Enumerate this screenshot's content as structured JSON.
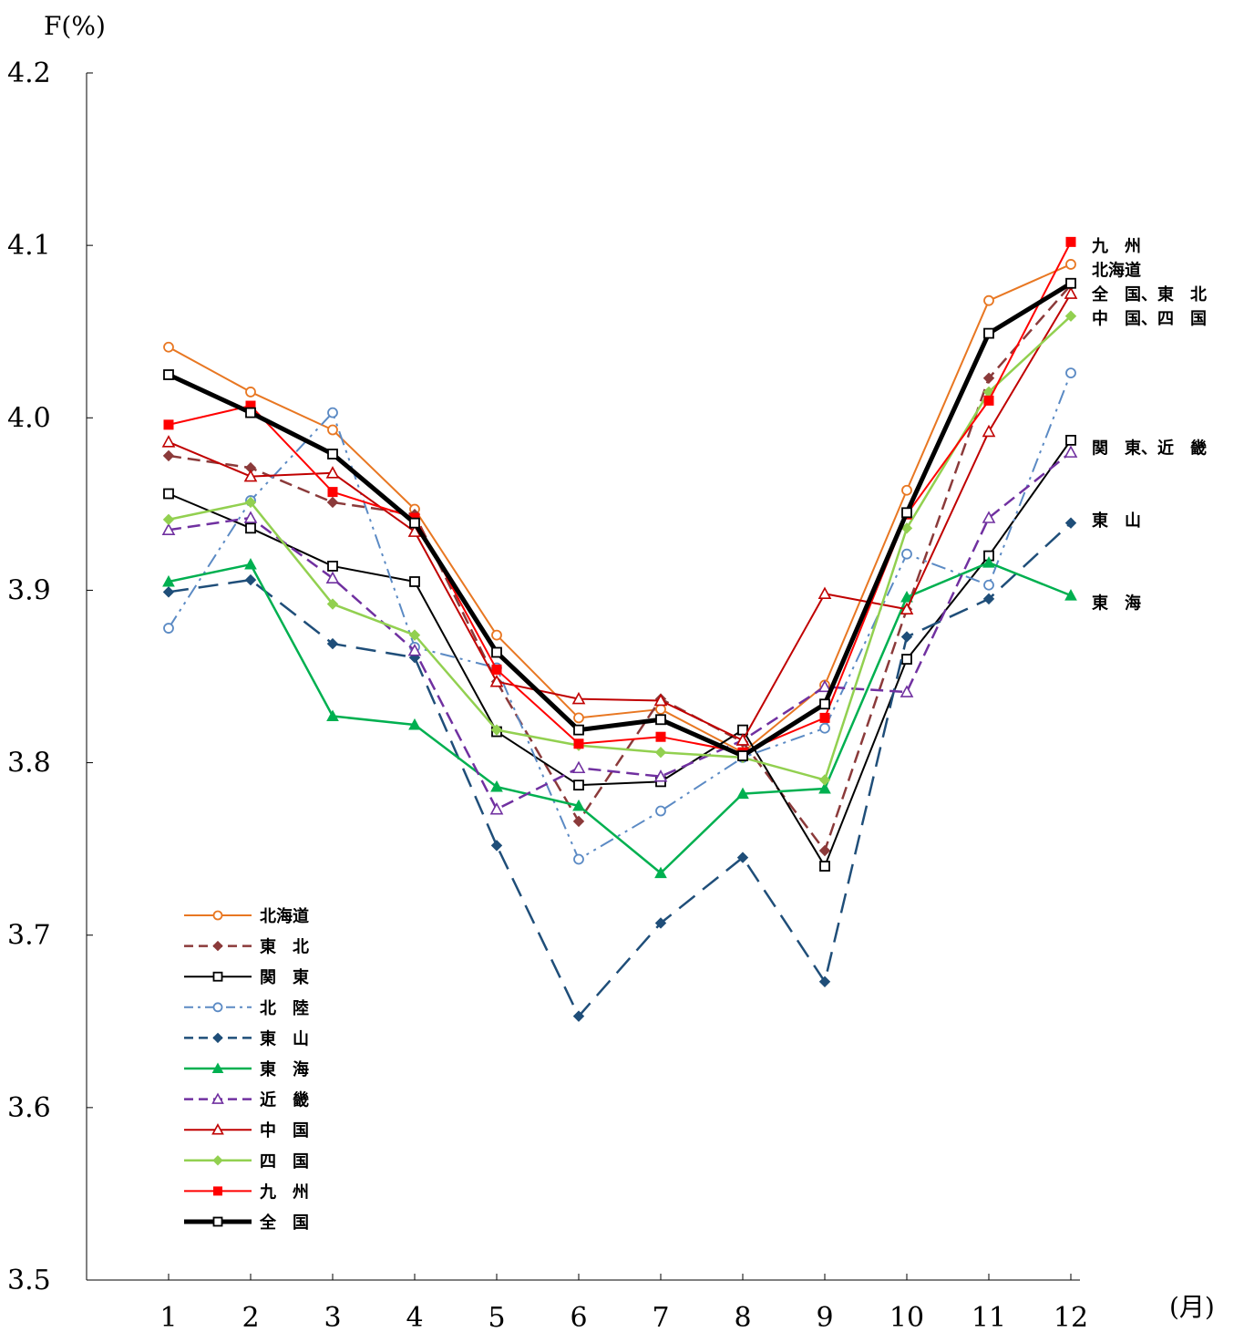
{
  "chart_data": {
    "type": "line",
    "ylabel": "F(%)",
    "xlabel": "(月)",
    "ylim": [
      3.5,
      4.2
    ],
    "y_ticks": [
      "3.5",
      "3.6",
      "3.7",
      "3.8",
      "3.9",
      "4.0",
      "4.1",
      "4.2"
    ],
    "categories": [
      "1",
      "2",
      "3",
      "4",
      "5",
      "6",
      "7",
      "8",
      "9",
      "10",
      "11",
      "12"
    ],
    "legend_position": "bottom-left",
    "series": [
      {
        "name": "北海道",
        "color": "#E87722",
        "dash": "solid",
        "marker": "circle-open",
        "width": 2,
        "values": [
          4.041,
          4.015,
          3.993,
          3.947,
          3.874,
          3.826,
          3.831,
          3.806,
          3.845,
          3.958,
          4.068,
          4.089
        ]
      },
      {
        "name": "東　北",
        "color": "#8B3A3A",
        "dash": "dash",
        "marker": "diamond",
        "width": 2.5,
        "values": [
          3.978,
          3.971,
          3.951,
          3.944,
          3.847,
          3.766,
          3.837,
          3.812,
          3.749,
          3.889,
          4.023,
          4.077
        ]
      },
      {
        "name": "関　東",
        "color": "#000000",
        "dash": "solid",
        "marker": "square-open",
        "width": 2,
        "values": [
          3.956,
          3.936,
          3.914,
          3.905,
          3.818,
          3.787,
          3.789,
          3.819,
          3.74,
          3.86,
          3.92,
          3.987
        ]
      },
      {
        "name": "北　陸",
        "color": "#5B8AC4",
        "dash": "dashdot",
        "marker": "circle-open",
        "width": 2,
        "values": [
          3.878,
          3.952,
          4.003,
          3.867,
          3.855,
          3.744,
          3.772,
          3.803,
          3.82,
          3.921,
          3.903,
          4.026
        ]
      },
      {
        "name": "東　山",
        "color": "#1F4E79",
        "dash": "longdash",
        "marker": "diamond",
        "width": 2.5,
        "values": [
          3.899,
          3.906,
          3.869,
          3.861,
          3.752,
          3.653,
          3.707,
          3.745,
          3.673,
          3.873,
          3.895,
          3.939
        ]
      },
      {
        "name": "東　海",
        "color": "#00B050",
        "dash": "solid",
        "marker": "triangle",
        "width": 2.5,
        "values": [
          3.905,
          3.915,
          3.827,
          3.822,
          3.786,
          3.775,
          3.736,
          3.782,
          3.785,
          3.896,
          3.916,
          3.897
        ]
      },
      {
        "name": "近　畿",
        "color": "#7030A0",
        "dash": "dash",
        "marker": "triangle-open",
        "width": 2.5,
        "values": [
          3.935,
          3.942,
          3.907,
          3.865,
          3.773,
          3.797,
          3.792,
          3.813,
          3.844,
          3.841,
          3.942,
          3.98
        ]
      },
      {
        "name": "中　国",
        "color": "#C00000",
        "dash": "solid",
        "marker": "triangle-open",
        "width": 2,
        "values": [
          3.986,
          3.966,
          3.968,
          3.934,
          3.847,
          3.837,
          3.836,
          3.813,
          3.898,
          3.889,
          3.992,
          4.072
        ]
      },
      {
        "name": "四　国",
        "color": "#92D050",
        "dash": "solid",
        "marker": "diamond",
        "width": 2.5,
        "values": [
          3.941,
          3.951,
          3.892,
          3.874,
          3.819,
          3.81,
          3.806,
          3.803,
          3.79,
          3.936,
          4.015,
          4.059
        ]
      },
      {
        "name": "九　州",
        "color": "#FF0000",
        "dash": "solid",
        "marker": "square",
        "width": 2,
        "values": [
          3.996,
          4.007,
          3.957,
          3.942,
          3.854,
          3.811,
          3.815,
          3.806,
          3.826,
          3.944,
          4.01,
          4.102
        ]
      },
      {
        "name": "全　国",
        "color": "#000000",
        "dash": "solid",
        "marker": "square-open",
        "width": 5,
        "values": [
          4.025,
          4.003,
          3.979,
          3.939,
          3.864,
          3.819,
          3.825,
          3.804,
          3.834,
          3.945,
          4.049,
          4.078
        ]
      }
    ],
    "end_labels": [
      {
        "text": "九　州",
        "y": 4.1
      },
      {
        "text": "北海道",
        "y": 4.086
      },
      {
        "text": "全　国、東　北",
        "y": 4.072
      },
      {
        "text": "中　国、四　国",
        "y": 4.058
      },
      {
        "text": "関　東、近　畿",
        "y": 3.983
      },
      {
        "text": "東　山",
        "y": 3.941
      },
      {
        "text": "東　海",
        "y": 3.893
      }
    ]
  }
}
